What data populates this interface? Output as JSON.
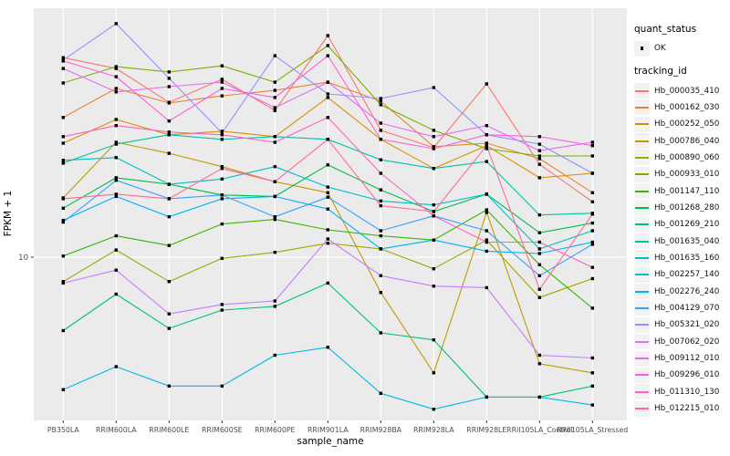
{
  "colors": {
    "panel_bg": "#EBEBEB",
    "grid": "#FFFFFF",
    "tick_text": "#4D4D4D",
    "tick_mark": "#333333",
    "marker": "#000000",
    "legend_key_bg": "#F2F2F2"
  },
  "chart_data": {
    "type": "line",
    "title": "",
    "xlabel": "sample_name",
    "ylabel": "FPKM + 1",
    "y_scale": "log10",
    "ylim": [
      2.646,
      75.96
    ],
    "y_ticks": [
      {
        "value": 10,
        "label": "10"
      }
    ],
    "grid": true,
    "legend_position": "right",
    "x_categories": [
      "PB350LA",
      "RRIM600LA",
      "RRIM600LE",
      "RRIM600SE",
      "RRIM600PE",
      "RRIM901LA",
      "RRIM928BA",
      "RRIM928LA",
      "RRIM928LE",
      "RRII105LA_Control",
      "RRII105LA_Stressed"
    ],
    "legends": {
      "quant_status": {
        "title": "quant_status",
        "items": [
          {
            "label": "OK",
            "marker": "point",
            "color": "#000000"
          }
        ]
      },
      "tracking_id": {
        "title": "tracking_id"
      }
    },
    "series": [
      {
        "name": "Hb_000035_410",
        "color": "#F8766D",
        "values": [
          50.8,
          46.5,
          35.3,
          42.6,
          33.0,
          60.8,
          28.1,
          24.4,
          41.0,
          21.3,
          15.7
        ]
      },
      {
        "name": "Hb_000162_030",
        "color": "#EA8331",
        "values": [
          31.2,
          39.5,
          35.1,
          37.2,
          38.9,
          41.6,
          35.6,
          24.6,
          25.3,
          22.3,
          16.9
        ]
      },
      {
        "name": "Hb_000252_050",
        "color": "#D89000",
        "values": [
          25.3,
          30.7,
          27.1,
          27.9,
          26.7,
          36.7,
          26.1,
          20.6,
          24.8,
          19.1,
          19.8
        ]
      },
      {
        "name": "Hb_000786_040",
        "color": "#C09B00",
        "values": [
          16.2,
          25.5,
          23.3,
          20.9,
          18.5,
          16.9,
          7.5,
          3.9,
          14.4,
          4.2,
          3.9
        ]
      },
      {
        "name": "Hb_000890_060",
        "color": "#A3A500",
        "values": [
          8.2,
          10.6,
          8.2,
          9.9,
          10.4,
          11.2,
          10.7,
          9.1,
          11.5,
          7.2,
          8.4
        ]
      },
      {
        "name": "Hb_000933_010",
        "color": "#7CAE00",
        "values": [
          41.3,
          47.2,
          45.2,
          47.5,
          41.6,
          56.0,
          34.6,
          28.1,
          24.2,
          22.8,
          22.8
        ]
      },
      {
        "name": "Hb_001147_110",
        "color": "#39B600",
        "values": [
          10.1,
          11.9,
          11.0,
          13.1,
          13.6,
          12.5,
          11.9,
          11.5,
          14.7,
          9.4,
          6.6
        ]
      },
      {
        "name": "Hb_001268_280",
        "color": "#00BB4E",
        "values": [
          14.9,
          19.1,
          18.1,
          16.6,
          16.4,
          21.2,
          17.3,
          14.5,
          16.7,
          12.2,
          13.2
        ]
      },
      {
        "name": "Hb_001269_210",
        "color": "#00BF7D",
        "values": [
          5.5,
          7.4,
          5.6,
          6.5,
          6.7,
          8.1,
          5.4,
          5.1,
          3.2,
          3.2,
          3.5
        ]
      },
      {
        "name": "Hb_001635_040",
        "color": "#00C1A3",
        "values": [
          21.5,
          25.1,
          27.1,
          26.1,
          26.7,
          26.1,
          22.1,
          20.6,
          21.8,
          14.1,
          14.3
        ]
      },
      {
        "name": "Hb_001635_160",
        "color": "#00BFC4",
        "values": [
          22.0,
          22.5,
          18.1,
          18.9,
          20.9,
          17.7,
          15.8,
          15.3,
          16.7,
          10.7,
          12.4
        ]
      },
      {
        "name": "Hb_002257_140",
        "color": "#00BAE0",
        "values": [
          3.4,
          4.1,
          3.5,
          3.5,
          4.5,
          4.8,
          3.3,
          2.9,
          3.2,
          3.2,
          3.0
        ]
      },
      {
        "name": "Hb_002276_240",
        "color": "#00B0F6",
        "values": [
          13.5,
          16.4,
          13.9,
          16.1,
          16.4,
          14.8,
          10.7,
          11.5,
          10.5,
          10.3,
          11.3
        ]
      },
      {
        "name": "Hb_004129_070",
        "color": "#35A2FF",
        "values": [
          13.3,
          18.7,
          16.1,
          16.6,
          13.9,
          16.3,
          12.4,
          14.0,
          12.4,
          8.6,
          11.1
        ]
      },
      {
        "name": "Hb_005321_020",
        "color": "#9590FF",
        "values": [
          49.8,
          67.0,
          42.9,
          27.5,
          51.6,
          37.8,
          36.4,
          39.8,
          27.1,
          25.1,
          19.8
        ]
      },
      {
        "name": "Hb_007062_020",
        "color": "#C77CFF",
        "values": [
          8.1,
          9.0,
          6.3,
          6.8,
          7.0,
          11.6,
          8.6,
          7.9,
          7.8,
          4.5,
          4.4
        ]
      },
      {
        "name": "Hb_009112_010",
        "color": "#E76BF3",
        "values": [
          46.5,
          38.4,
          40.1,
          41.6,
          33.8,
          41.6,
          29.8,
          26.7,
          29.2,
          23.8,
          25.5
        ]
      },
      {
        "name": "Hb_009296_010",
        "color": "#FA62DB",
        "values": [
          49.4,
          43.5,
          30.3,
          39.5,
          36.7,
          51.6,
          26.1,
          24.2,
          27.1,
          26.7,
          24.8
        ]
      },
      {
        "name": "Hb_011310_130",
        "color": "#FF62BC",
        "values": [
          26.7,
          29.2,
          27.7,
          27.1,
          25.5,
          31.2,
          19.8,
          14.0,
          11.3,
          11.3,
          9.2
        ]
      },
      {
        "name": "Hb_012215_010",
        "color": "#FF6A98",
        "values": [
          16.1,
          16.7,
          16.1,
          20.6,
          18.5,
          26.1,
          15.2,
          14.5,
          24.8,
          7.7,
          14.2
        ]
      }
    ]
  }
}
